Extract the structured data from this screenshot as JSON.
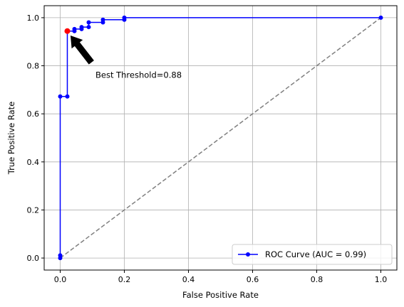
{
  "chart_data": {
    "type": "line",
    "title": "",
    "xlabel": "False Positive Rate",
    "ylabel": "True Positive Rate",
    "xlim": [
      -0.05,
      1.05
    ],
    "ylim": [
      -0.05,
      1.05
    ],
    "xticks": [
      0.0,
      0.2,
      0.4,
      0.6,
      0.8,
      1.0
    ],
    "yticks": [
      0.0,
      0.2,
      0.4,
      0.6,
      0.8,
      1.0
    ],
    "xtick_labels": [
      "0.0",
      "0.2",
      "0.4",
      "0.6",
      "0.8",
      "1.0"
    ],
    "ytick_labels": [
      "0.0",
      "0.2",
      "0.4",
      "0.6",
      "0.8",
      "1.0"
    ],
    "grid": true,
    "legend_position": "bottom-right",
    "series": [
      {
        "name": "ROC Curve (AUC = 0.99)",
        "color": "#0000ff",
        "marker": "circle",
        "x": [
          0.0,
          0.0,
          0.0,
          0.0222,
          0.0222,
          0.0444,
          0.0444,
          0.0667,
          0.0667,
          0.0889,
          0.0889,
          0.1333,
          0.1333,
          0.2,
          0.2,
          1.0
        ],
        "y": [
          0.0,
          0.0111,
          0.6722,
          0.6722,
          0.9444,
          0.9444,
          0.9528,
          0.9528,
          0.9611,
          0.9611,
          0.9806,
          0.9806,
          0.9917,
          0.9917,
          1.0,
          1.0
        ]
      },
      {
        "name": "",
        "color": "#808080",
        "style": "dashed",
        "x": [
          0.0,
          1.0
        ],
        "y": [
          0.0,
          1.0
        ]
      }
    ],
    "best_point": {
      "x": 0.0222,
      "y": 0.9444,
      "color": "#ff0000"
    },
    "annotation": {
      "text": "Best Threshold=0.88",
      "text_x": 0.11,
      "text_y": 0.75,
      "arrow_color": "#000000"
    }
  }
}
